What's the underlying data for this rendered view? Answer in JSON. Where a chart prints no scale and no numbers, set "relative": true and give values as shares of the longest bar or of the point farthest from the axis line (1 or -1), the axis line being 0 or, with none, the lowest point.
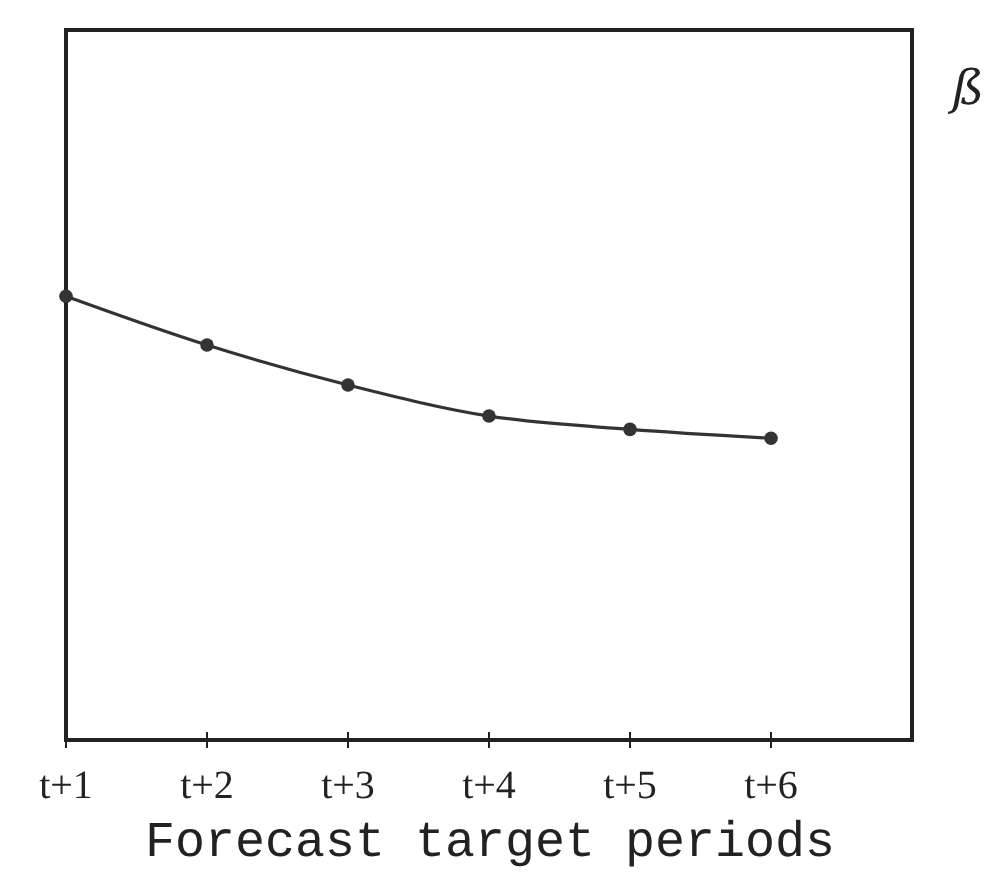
{
  "chart_data": {
    "type": "line",
    "relative": true,
    "xlabel": "Forecast target periods",
    "categories": [
      "t+1",
      "t+2",
      "t+3",
      "t+4",
      "t+5",
      "t+6",
      null
    ],
    "values": [
      1,
      0.89,
      0.8,
      0.73,
      0.7,
      0.68,
      null
    ],
    "color": "#333333",
    "marker": "circle",
    "line_style": "solid",
    "annotations": [
      "ß"
    ]
  }
}
